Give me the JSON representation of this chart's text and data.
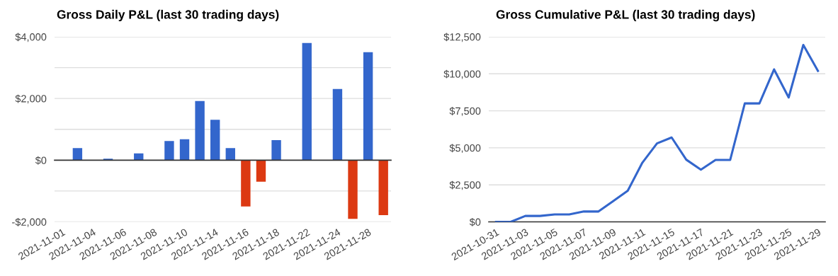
{
  "chart_data": [
    {
      "type": "bar",
      "title": "Gross Daily P&L (last 30 trading days)",
      "categories": [
        "2021-11-01",
        null,
        "2021-11-04",
        null,
        "2021-11-06",
        null,
        "2021-11-08",
        null,
        "2021-11-10",
        null,
        "2021-11-14",
        null,
        "2021-11-16",
        null,
        "2021-11-18",
        null,
        "2021-11-22",
        null,
        "2021-11-24",
        null,
        "2021-11-28",
        null
      ],
      "values": [
        0,
        390,
        0,
        50,
        0,
        220,
        0,
        620,
        680,
        1920,
        1310,
        390,
        -1500,
        -700,
        650,
        0,
        3800,
        0,
        2310,
        -1900,
        3500,
        -1780
      ],
      "colors": [
        "#3366cc",
        "#3366cc",
        "#3366cc",
        "#3366cc",
        "#3366cc",
        "#3366cc",
        "#3366cc",
        "#3366cc",
        "#3366cc",
        "#3366cc",
        "#3366cc",
        "#3366cc",
        "#dc3912",
        "#dc3912",
        "#3366cc",
        "#3366cc",
        "#3366cc",
        "#3366cc",
        "#3366cc",
        "#dc3912",
        "#3366cc",
        "#dc3912"
      ],
      "ylim": [
        -2000,
        4000
      ],
      "yticks": [
        {
          "value": -2000,
          "label": "-$2,000"
        },
        {
          "value": -1000,
          "label": null
        },
        {
          "value": 0,
          "label": "$0"
        },
        {
          "value": 1000,
          "label": null
        },
        {
          "value": 2000,
          "label": "$2,000"
        },
        {
          "value": 3000,
          "label": null
        },
        {
          "value": 4000,
          "label": "$4,000"
        }
      ],
      "ref_lines": [
        {
          "axis": "y",
          "value": 0,
          "color": "#333333"
        }
      ],
      "grid": "y"
    },
    {
      "type": "line",
      "title": "Gross Cumulative P&L (last 30 trading days)",
      "categories": [
        "2021-10-31",
        null,
        "2021-11-03",
        null,
        "2021-11-05",
        null,
        "2021-11-07",
        null,
        "2021-11-09",
        null,
        "2021-11-11",
        null,
        "2021-11-15",
        null,
        "2021-11-17",
        null,
        "2021-11-21",
        null,
        "2021-11-23",
        null,
        "2021-11-25",
        null,
        "2021-11-29"
      ],
      "series": [
        {
          "color": "#3366cc",
          "values": [
            0,
            0,
            400,
            400,
            500,
            500,
            700,
            700,
            1400,
            2100,
            4000,
            5300,
            5700,
            4200,
            3530,
            4180,
            4180,
            8000,
            8000,
            10300,
            8400,
            11950,
            10200
          ]
        }
      ],
      "ylim": [
        0,
        12500
      ],
      "yticks": [
        {
          "value": 0,
          "label": "$0"
        },
        {
          "value": 2500,
          "label": "$2,500"
        },
        {
          "value": 5000,
          "label": "$5,000"
        },
        {
          "value": 7500,
          "label": "$7,500"
        },
        {
          "value": 10000,
          "label": "$10,000"
        },
        {
          "value": 12500,
          "label": "$12,500"
        }
      ],
      "grid": "y",
      "marker": "none",
      "line_style": "solid"
    }
  ]
}
